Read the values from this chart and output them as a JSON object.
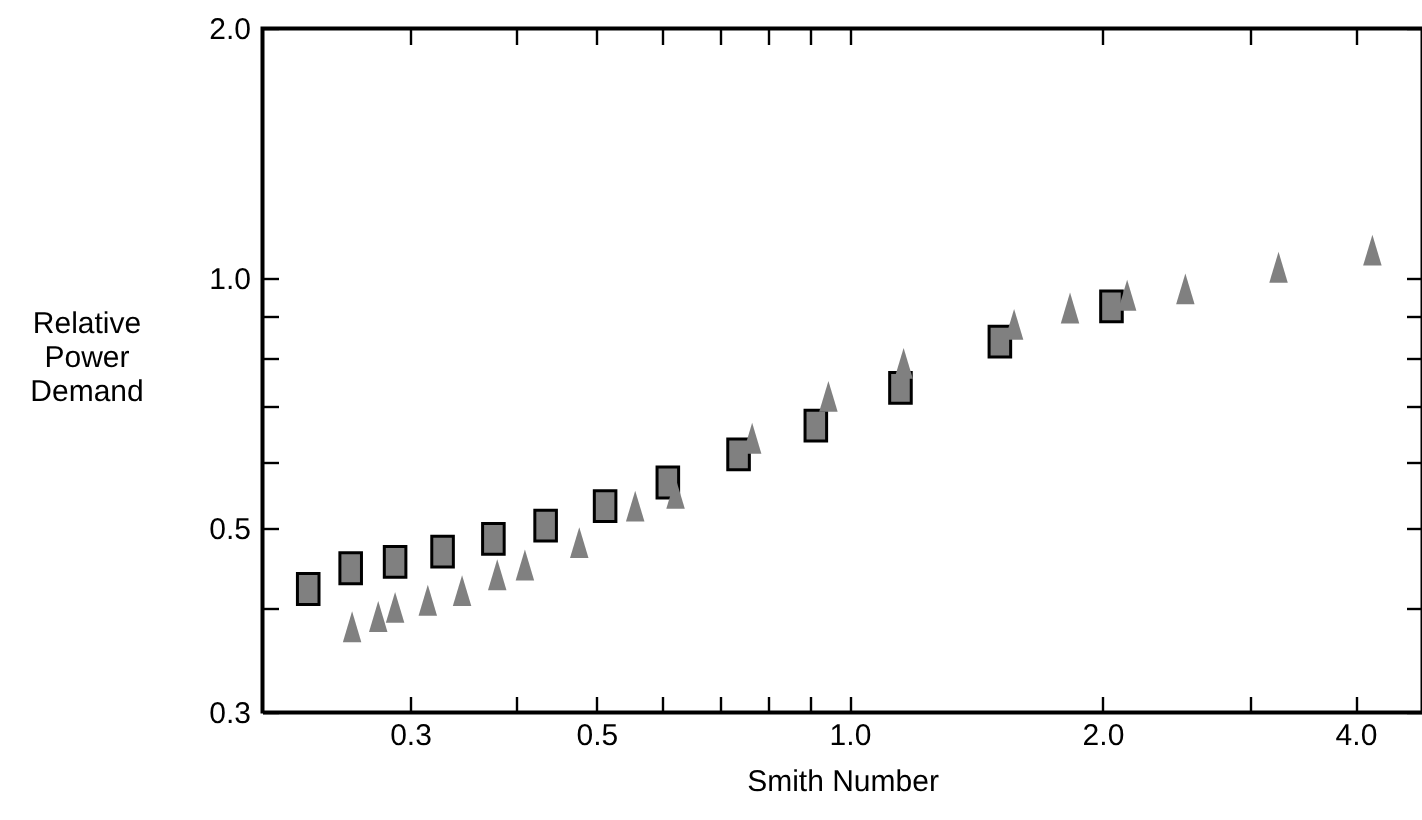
{
  "chart_data": {
    "type": "scatter",
    "xlabel": "Smith Number",
    "ylabel": "Relative Power Demand",
    "log": "xy",
    "grid": false,
    "xlim": [
      0.2,
      4.8
    ],
    "ylim": [
      0.3,
      2.0
    ],
    "xticks": [
      {
        "value": 0.3,
        "label": "0.3"
      },
      {
        "value": 0.4,
        "label": null
      },
      {
        "value": 0.5,
        "label": "0.5"
      },
      {
        "value": 0.6,
        "label": null
      },
      {
        "value": 0.7,
        "label": null
      },
      {
        "value": 0.8,
        "label": null
      },
      {
        "value": 0.9,
        "label": null
      },
      {
        "value": 1,
        "label": "1.0"
      },
      {
        "value": 2,
        "label": "2.0"
      },
      {
        "value": 3,
        "label": null
      },
      {
        "value": 4,
        "label": "4.0"
      }
    ],
    "yticks": [
      {
        "value": 0.3,
        "label": "0.3"
      },
      {
        "value": 0.4,
        "label": null
      },
      {
        "value": 0.5,
        "label": "0.5"
      },
      {
        "value": 0.6,
        "label": null
      },
      {
        "value": 0.7,
        "label": null
      },
      {
        "value": 0.8,
        "label": null
      },
      {
        "value": 0.9,
        "label": null
      },
      {
        "value": 1,
        "label": "1.0"
      },
      {
        "value": 2,
        "label": "2.0"
      }
    ],
    "series": [
      {
        "marker": "square",
        "color": "#808080",
        "x": [
          0.227,
          0.255,
          0.288,
          0.328,
          0.377,
          0.435,
          0.512,
          0.608,
          0.738,
          0.912,
          1.15,
          1.51,
          2.05
        ],
        "values": [
          0.422,
          0.447,
          0.455,
          0.468,
          0.485,
          0.503,
          0.531,
          0.567,
          0.613,
          0.664,
          0.737,
          0.838,
          0.924
        ]
      },
      {
        "marker": "triangle",
        "color": "#808080",
        "x": [
          0.256,
          0.275,
          0.288,
          0.315,
          0.346,
          0.381,
          0.411,
          0.477,
          0.556,
          0.621,
          0.766,
          0.944,
          1.16,
          1.57,
          1.83,
          2.14,
          2.51,
          3.24,
          4.19
        ],
        "values": [
          0.38,
          0.391,
          0.401,
          0.409,
          0.42,
          0.439,
          0.451,
          0.48,
          0.531,
          0.55,
          0.641,
          0.72,
          0.789,
          0.879,
          0.92,
          0.953,
          0.97,
          1.03,
          1.08
        ]
      }
    ]
  }
}
